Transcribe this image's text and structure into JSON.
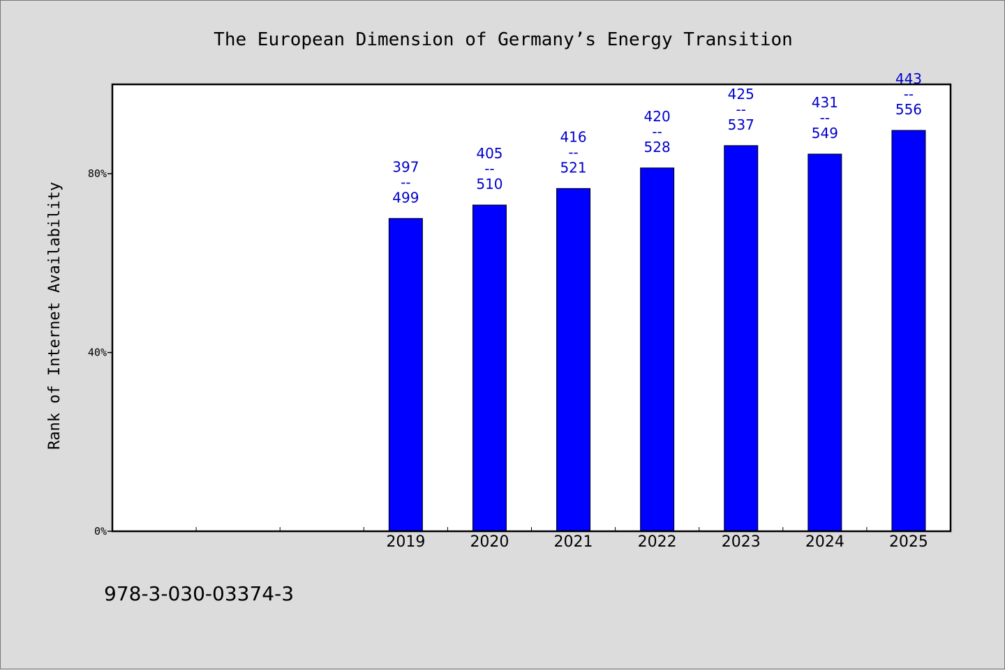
{
  "chart_data": {
    "type": "bar",
    "title": "The European Dimension of Germany’s Energy Transition",
    "xlabel": "",
    "ylabel": "Rank of Internet Availability",
    "ylim": [
      0,
      100
    ],
    "yticks": [
      {
        "value": 0,
        "label": "0%"
      },
      {
        "value": 40,
        "label": "40%"
      },
      {
        "value": 80,
        "label": "80%"
      }
    ],
    "slots": 10,
    "categories": [
      "2019",
      "2020",
      "2021",
      "2022",
      "2023",
      "2024",
      "2025"
    ],
    "category_start_slot": 3,
    "values": [
      70,
      73,
      76.7,
      81.3,
      86.3,
      84.4,
      89.7
    ],
    "annotations": [
      [
        "397",
        "--",
        "499"
      ],
      [
        "405",
        "--",
        "510"
      ],
      [
        "416",
        "--",
        "521"
      ],
      [
        "420",
        "--",
        "528"
      ],
      [
        "425",
        "--",
        "537"
      ],
      [
        "431",
        "--",
        "549"
      ],
      [
        "443",
        "--",
        "556"
      ]
    ],
    "bar_color": "#0000ff",
    "label_color": "#0000cc",
    "grid": false,
    "legend": "none"
  },
  "footer": {
    "code": "978-3-030-03374-3"
  }
}
